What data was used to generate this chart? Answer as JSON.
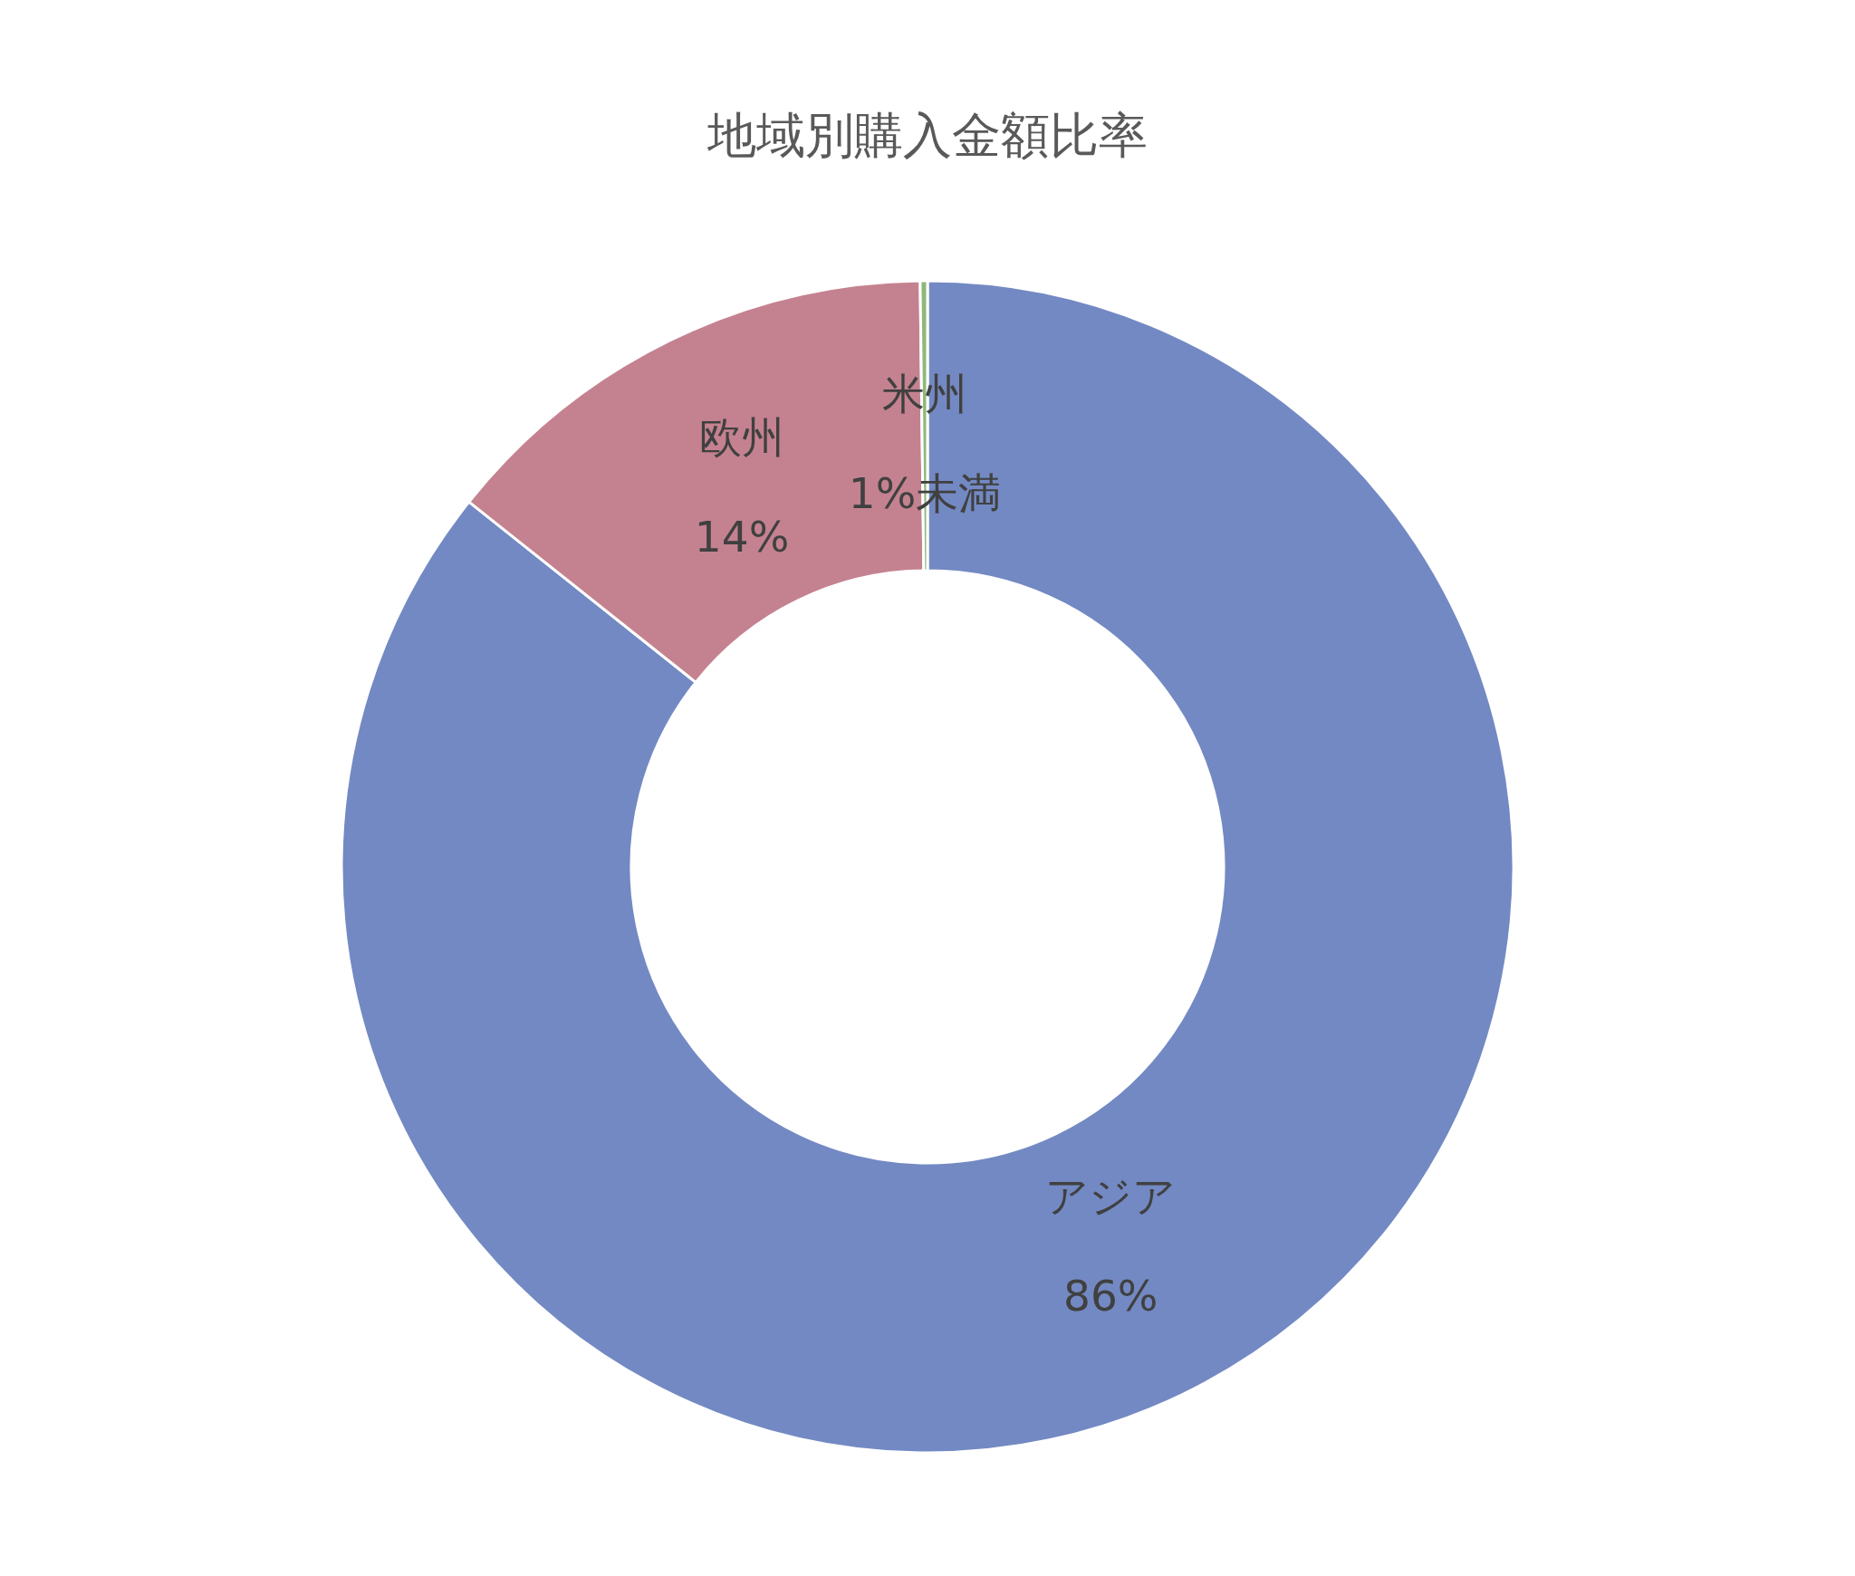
{
  "chart_data": {
    "type": "donut",
    "title": "地域別購入金額比率",
    "categories": [
      "アジア",
      "欧州",
      "米州"
    ],
    "values": [
      85.7,
      14.1,
      0.2
    ],
    "colors": [
      "#7389c3",
      "#c48290",
      "#8fb87a"
    ],
    "value_labels": [
      "86%",
      "14%",
      null
    ],
    "annotations": [
      "1%未満"
    ]
  }
}
